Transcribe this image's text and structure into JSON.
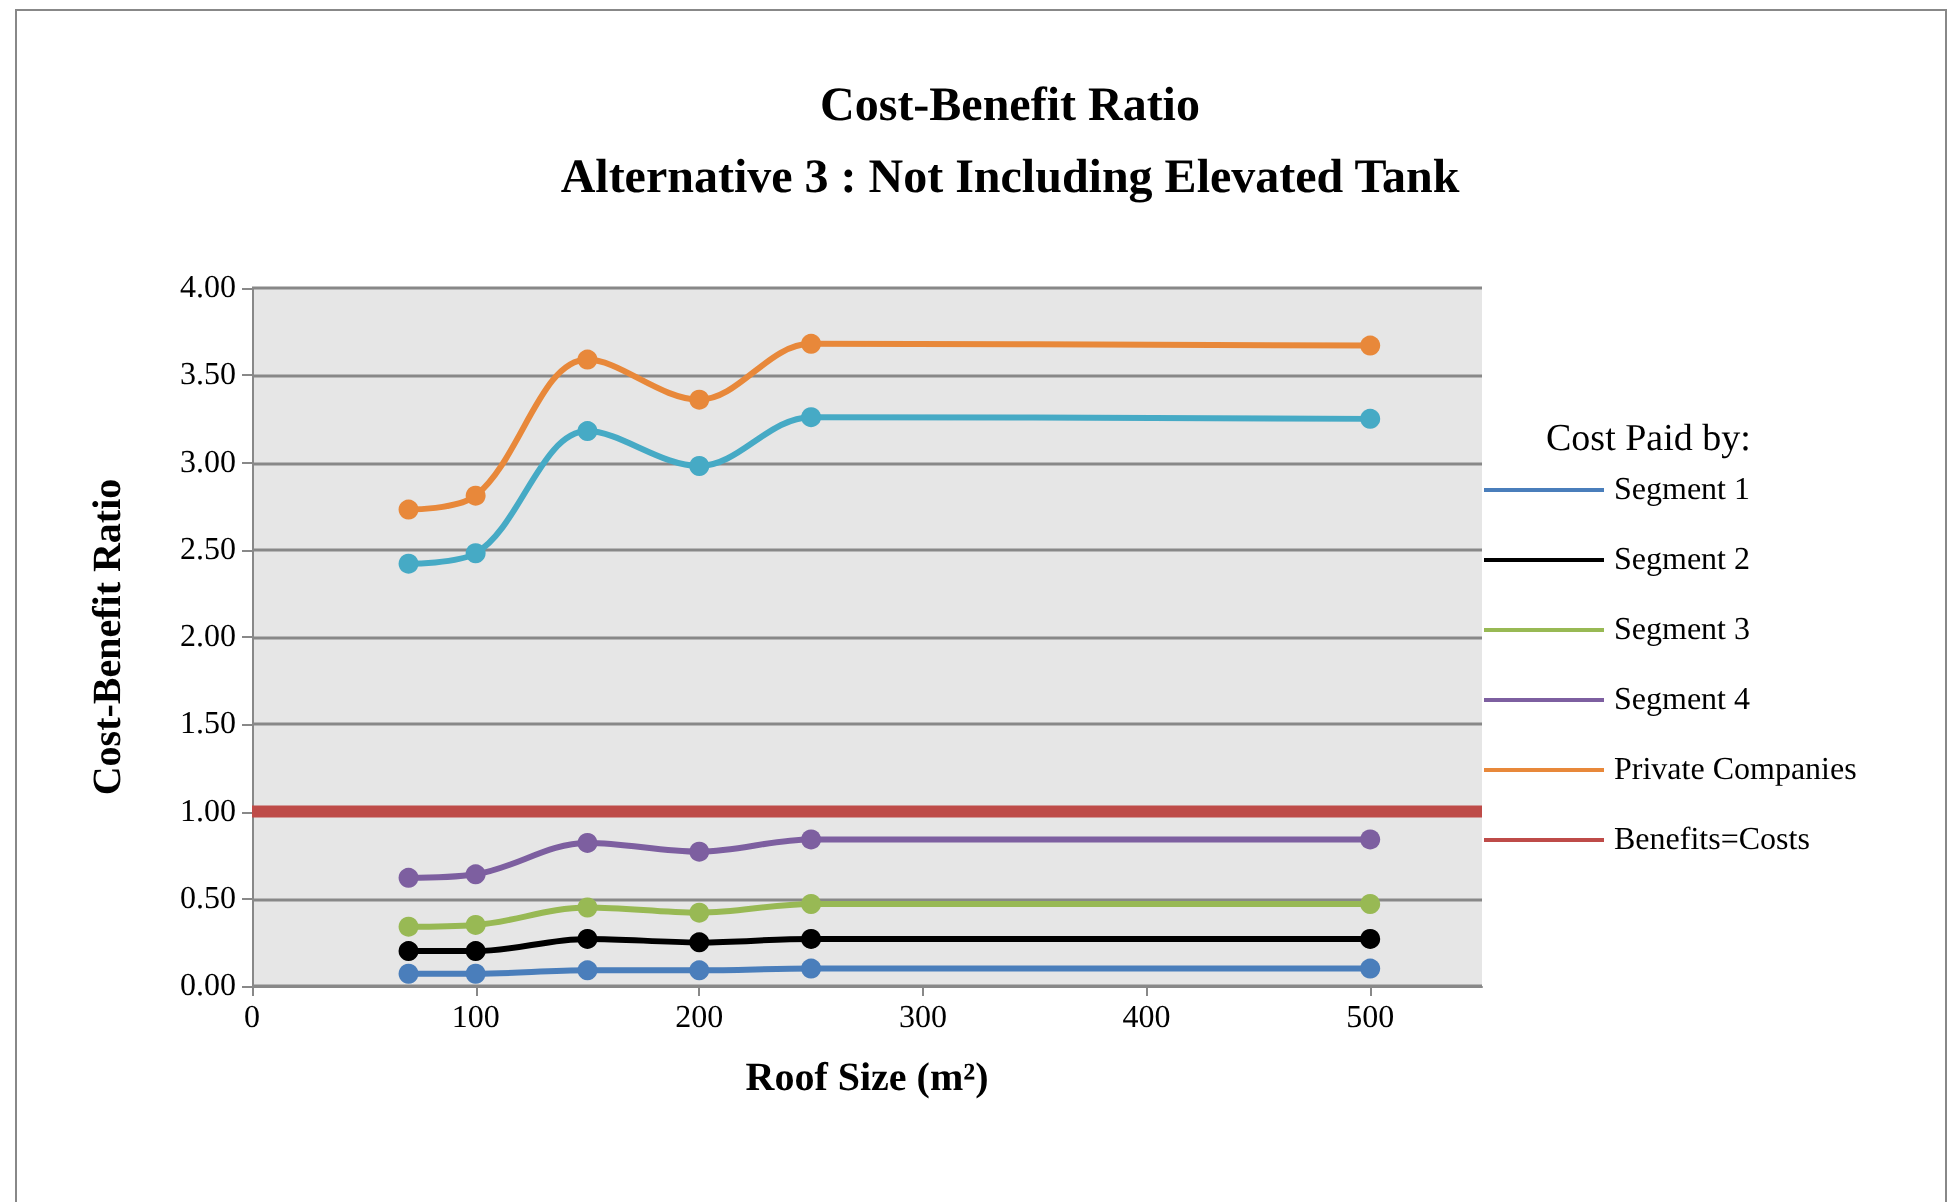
{
  "chart_data": {
    "type": "line",
    "title": "Cost-Benefit Ratio\nAlternative 3 : Not Including Elevated Tank",
    "xlabel": "Roof Size (m²)",
    "ylabel": "Cost-Benefit Ratio",
    "legend_title": "Cost Paid by:",
    "legend": "right",
    "grid": "y",
    "marker": "circle",
    "line_style": "solid",
    "x": [
      70,
      100,
      150,
      200,
      250,
      500
    ],
    "xlim": [
      0,
      550
    ],
    "xticks": [
      0,
      100,
      200,
      300,
      400,
      500
    ],
    "ylim": [
      0,
      4
    ],
    "yticks": [
      {
        "value": 0,
        "label": "0.00"
      },
      {
        "value": 0.5,
        "label": "0.50"
      },
      {
        "value": 1,
        "label": "1.00"
      },
      {
        "value": 1.5,
        "label": "1.50"
      },
      {
        "value": 2,
        "label": "2.00"
      },
      {
        "value": 2.5,
        "label": "2.50"
      },
      {
        "value": 3,
        "label": "3.00"
      },
      {
        "value": 3.5,
        "label": "3.50"
      },
      {
        "value": 4,
        "label": "4.00"
      }
    ],
    "series": [
      {
        "name": "Segment 1",
        "color": "#4a7ebb",
        "values": [
          0.07,
          0.07,
          0.09,
          0.09,
          0.1,
          0.1
        ]
      },
      {
        "name": "Segment 2",
        "color": "#000000",
        "values": [
          0.2,
          0.2,
          0.27,
          0.25,
          0.27,
          0.27
        ]
      },
      {
        "name": "Segment 3",
        "color": "#98b954",
        "values": [
          0.34,
          0.35,
          0.45,
          0.42,
          0.47,
          0.47
        ]
      },
      {
        "name": "Segment 4",
        "color": "#7d5fa0",
        "values": [
          0.62,
          0.64,
          0.82,
          0.77,
          0.84,
          0.84
        ]
      },
      {
        "color": "#46aac5",
        "values": [
          2.42,
          2.48,
          3.18,
          2.98,
          3.26,
          3.25
        ]
      },
      {
        "name": "Private Companies",
        "color": "#e8883a",
        "values": [
          2.73,
          2.81,
          3.59,
          3.36,
          3.68,
          3.67
        ]
      },
      {
        "name": "Benefits=Costs",
        "color": "#be4b48",
        "x": [
          0,
          550
        ],
        "values": [
          1,
          1
        ],
        "marker": "none"
      }
    ]
  }
}
